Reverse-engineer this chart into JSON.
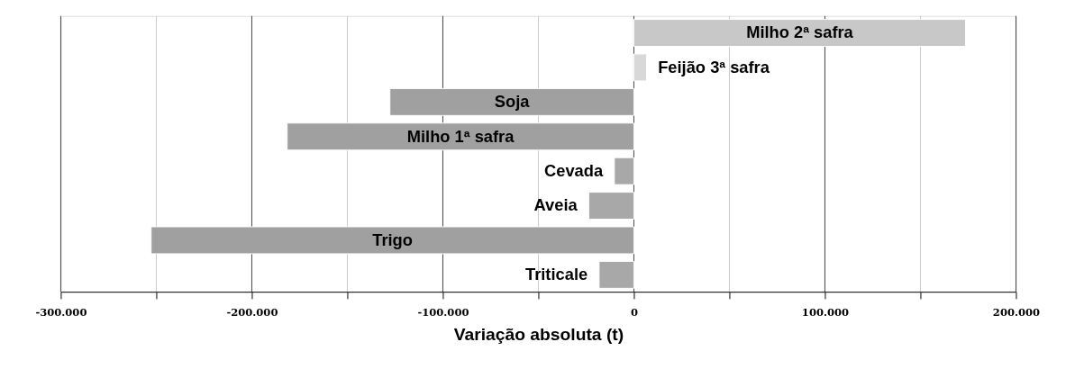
{
  "chart_data": {
    "type": "bar",
    "orientation": "horizontal",
    "xlabel": "Variação absoluta (t)",
    "categories": [
      "Milho 2ª safra",
      "Feijão 3ª safra",
      "Soja",
      "Milho 1ª safra",
      "Cevada",
      "Aveia",
      "Trigo",
      "Triticale"
    ],
    "values": [
      173600,
      6600,
      -127700,
      -181500,
      -10200,
      -23600,
      -252700,
      -18200
    ],
    "colors": [
      "#c8c8c8",
      "#d8d8d8",
      "#a0a0a0",
      "#a0a0a0",
      "#a8a8a8",
      "#a8a8a8",
      "#a0a0a0",
      "#a8a8a8"
    ],
    "xlim": [
      -300000,
      200000
    ],
    "xticks": [
      {
        "value": -300000,
        "label": "-300.000"
      },
      {
        "value": -250000,
        "label": null
      },
      {
        "value": -200000,
        "label": "-200.000"
      },
      {
        "value": -150000,
        "label": null
      },
      {
        "value": -100000,
        "label": "-100.000"
      },
      {
        "value": -50000,
        "label": null
      },
      0,
      {
        "value": 50000,
        "label": null
      },
      {
        "value": 100000,
        "label": "100.000"
      },
      {
        "value": 150000,
        "label": null
      },
      {
        "value": 200000,
        "label": "200.000"
      }
    ],
    "grid": "x",
    "tick_labels": "x"
  }
}
